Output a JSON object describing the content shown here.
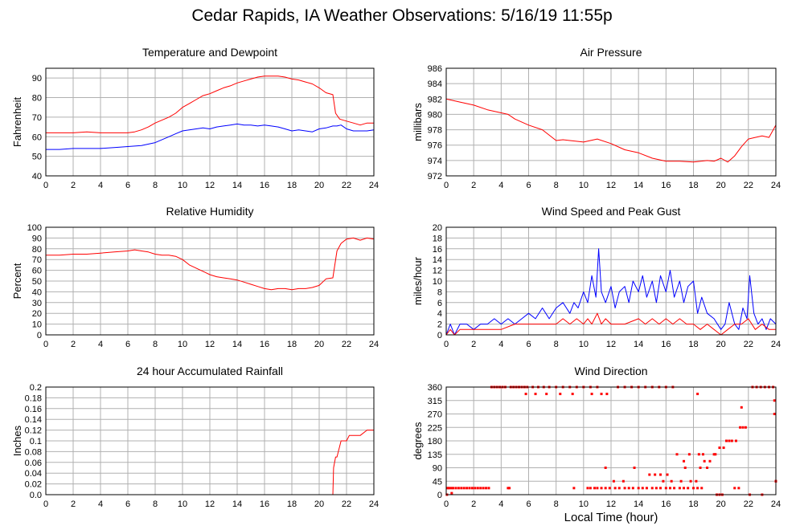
{
  "page": {
    "title": "Cedar Rapids, IA Weather Observations: 5/16/19 11:55p",
    "xlabel": "Local Time (hour)"
  },
  "colors": {
    "red": "#ff0000",
    "blue": "#0000ff",
    "grid": "#b0b0b0"
  },
  "chart_data": [
    {
      "id": "temp",
      "type": "line",
      "title": "Temperature and Dewpoint",
      "ylabel": "Fahrenheit",
      "xlim": [
        0,
        24
      ],
      "ylim": [
        40,
        95
      ],
      "xticks": [
        0,
        2,
        4,
        6,
        8,
        10,
        12,
        14,
        16,
        18,
        20,
        22,
        24
      ],
      "yticks": [
        40,
        50,
        60,
        70,
        80,
        90
      ],
      "grid": true,
      "series": [
        {
          "color": "#ff0000",
          "x": [
            0,
            1,
            2,
            3,
            4,
            5,
            6,
            6.5,
            7,
            7.5,
            8,
            8.5,
            9,
            9.5,
            10,
            10.5,
            11,
            11.5,
            12,
            12.5,
            13,
            13.5,
            14,
            14.5,
            15,
            15.5,
            16,
            16.5,
            17,
            17.5,
            18,
            18.5,
            19,
            19.5,
            20,
            20.5,
            21,
            21.2,
            21.5,
            22,
            22.5,
            23,
            23.5,
            24
          ],
          "y": [
            62,
            62,
            62,
            62.5,
            62,
            62,
            62,
            62.5,
            63.5,
            65,
            67,
            68.5,
            70,
            72,
            75,
            77,
            79,
            81,
            82,
            83.5,
            85,
            86,
            87.5,
            88.5,
            89.5,
            90.5,
            91,
            91,
            91,
            90.5,
            89.5,
            89,
            88,
            87,
            85,
            82.5,
            81.5,
            72,
            69,
            68,
            67,
            66,
            67,
            67
          ]
        },
        {
          "color": "#0000ff",
          "x": [
            0,
            1,
            2,
            3,
            4,
            5,
            6,
            7,
            8,
            8.5,
            9,
            9.5,
            10,
            10.5,
            11,
            11.5,
            12,
            12.5,
            13,
            13.5,
            14,
            14.5,
            15,
            15.5,
            16,
            16.5,
            17,
            17.5,
            18,
            18.5,
            19,
            19.5,
            20,
            20.5,
            21,
            21.3,
            21.6,
            22,
            22.5,
            23,
            23.5,
            24
          ],
          "y": [
            53.5,
            53.5,
            54,
            54,
            54,
            54.5,
            55,
            55.5,
            57,
            58.5,
            60,
            61.5,
            63,
            63.5,
            64,
            64.5,
            64,
            65,
            65.5,
            66,
            66.5,
            66,
            66,
            65.5,
            66,
            65.5,
            65,
            64,
            63,
            63.5,
            63,
            62.5,
            64,
            64.5,
            65.5,
            65.5,
            66,
            64,
            63,
            63,
            63,
            63.5
          ]
        }
      ]
    },
    {
      "id": "pressure",
      "type": "line",
      "title": "Air Pressure",
      "ylabel": "millibars",
      "xlim": [
        0,
        24
      ],
      "ylim": [
        972,
        986
      ],
      "xticks": [
        0,
        2,
        4,
        6,
        8,
        10,
        12,
        14,
        16,
        18,
        20,
        22,
        24
      ],
      "yticks": [
        972,
        974,
        976,
        978,
        980,
        982,
        984,
        986
      ],
      "grid": true,
      "series": [
        {
          "color": "#ff0000",
          "x": [
            0,
            1,
            2,
            3,
            4,
            4.5,
            5,
            6,
            7,
            8,
            8.5,
            9,
            10,
            11,
            12,
            13,
            14,
            15,
            16,
            17,
            18,
            19,
            19.5,
            20,
            20.5,
            21,
            21.5,
            22,
            22.5,
            23,
            23.5,
            24
          ],
          "y": [
            982,
            981.6,
            981.2,
            980.6,
            980.2,
            980,
            979.4,
            978.6,
            978,
            976.6,
            976.7,
            976.6,
            976.4,
            976.8,
            976.2,
            975.4,
            975,
            974.3,
            973.9,
            973.9,
            973.8,
            974,
            973.9,
            974.3,
            973.8,
            974.6,
            975.8,
            976.8,
            977,
            977.2,
            977,
            978.6
          ]
        }
      ]
    },
    {
      "id": "humidity",
      "type": "line",
      "title": "Relative Humidity",
      "ylabel": "Percent",
      "xlim": [
        0,
        24
      ],
      "ylim": [
        0,
        100
      ],
      "xticks": [
        0,
        2,
        4,
        6,
        8,
        10,
        12,
        14,
        16,
        18,
        20,
        22,
        24
      ],
      "yticks": [
        0,
        10,
        20,
        30,
        40,
        50,
        60,
        70,
        80,
        90,
        100
      ],
      "grid": true,
      "series": [
        {
          "color": "#ff0000",
          "x": [
            0,
            1,
            2,
            3,
            4,
            5,
            6,
            6.5,
            7,
            7.5,
            8,
            8.5,
            9,
            9.5,
            10,
            10.5,
            11,
            11.5,
            12,
            12.5,
            13,
            13.5,
            14,
            14.5,
            15,
            15.5,
            16,
            16.5,
            17,
            17.5,
            18,
            18.5,
            19,
            19.5,
            20,
            20.5,
            21,
            21.3,
            21.6,
            22,
            22.5,
            23,
            23.5,
            24
          ],
          "y": [
            74,
            74,
            75,
            75,
            76,
            77,
            78,
            79,
            78,
            77,
            75,
            74,
            74,
            73,
            70,
            65,
            62,
            59,
            56,
            54,
            53,
            52,
            51,
            49,
            47,
            45,
            43,
            42,
            43,
            43,
            42,
            43,
            43,
            44,
            46,
            52,
            53,
            78,
            85,
            89,
            90,
            88,
            90,
            89
          ]
        }
      ]
    },
    {
      "id": "wind",
      "type": "line",
      "title": "Wind Speed and Peak Gust",
      "ylabel": "miles/hour",
      "xlim": [
        0,
        24
      ],
      "ylim": [
        0,
        20
      ],
      "xticks": [
        0,
        2,
        4,
        6,
        8,
        10,
        12,
        14,
        16,
        18,
        20,
        22,
        24
      ],
      "yticks": [
        0,
        2,
        4,
        6,
        8,
        10,
        12,
        14,
        16,
        18,
        20
      ],
      "grid": true,
      "series": [
        {
          "color": "#0000ff",
          "x": [
            0,
            0.3,
            0.6,
            1,
            1.5,
            2,
            2.5,
            3,
            3.5,
            4,
            4.5,
            5,
            5.5,
            6,
            6.5,
            7,
            7.5,
            8,
            8.5,
            9,
            9.3,
            9.6,
            10,
            10.3,
            10.6,
            10.9,
            11.1,
            11.3,
            11.6,
            12,
            12.3,
            12.6,
            13,
            13.3,
            13.6,
            14,
            14.3,
            14.6,
            15,
            15.3,
            15.6,
            16,
            16.3,
            16.6,
            17,
            17.3,
            17.6,
            18,
            18.3,
            18.6,
            19,
            19.5,
            20,
            20.3,
            20.6,
            21,
            21.3,
            21.6,
            21.9,
            22.1,
            22.4,
            22.7,
            23,
            23.3,
            23.6,
            24
          ],
          "y": [
            0,
            2,
            0,
            2,
            2,
            1,
            2,
            2,
            3,
            2,
            3,
            2,
            3,
            4,
            3,
            5,
            3,
            5,
            6,
            4,
            6,
            5,
            8,
            6,
            11,
            7,
            16,
            8,
            6,
            9,
            5,
            8,
            9,
            6,
            10,
            8,
            11,
            7,
            10,
            6,
            11,
            8,
            12,
            7,
            10,
            6,
            9,
            10,
            4,
            7,
            4,
            3,
            1,
            2,
            6,
            2,
            1,
            5,
            3,
            11,
            4,
            2,
            3,
            1,
            3,
            2
          ]
        },
        {
          "color": "#ff0000",
          "x": [
            0,
            0.3,
            0.6,
            1,
            2,
            3,
            4,
            5,
            6,
            7,
            8,
            8.5,
            9,
            9.5,
            10,
            10.3,
            10.6,
            11,
            11.3,
            11.6,
            12,
            13,
            14,
            14.5,
            15,
            15.5,
            16,
            16.5,
            17,
            17.5,
            18,
            18.5,
            19,
            19.5,
            20,
            20.5,
            21,
            21.5,
            22,
            22.5,
            23,
            23.5,
            24
          ],
          "y": [
            0,
            1,
            0,
            1,
            1,
            1,
            1,
            2,
            2,
            2,
            2,
            3,
            2,
            3,
            2,
            3,
            2,
            4,
            2,
            3,
            2,
            2,
            3,
            2,
            3,
            2,
            3,
            2,
            3,
            2,
            2,
            1,
            2,
            1,
            0,
            1,
            2,
            2,
            3,
            1,
            2,
            1,
            1
          ]
        }
      ]
    },
    {
      "id": "rain",
      "type": "line",
      "title": "24 hour Accumulated Rainfall",
      "ylabel": "Inches",
      "xlim": [
        0,
        24
      ],
      "ylim": [
        0,
        0.2
      ],
      "xticks": [
        0,
        2,
        4,
        6,
        8,
        10,
        12,
        14,
        16,
        18,
        20,
        22,
        24
      ],
      "yticks": [
        0,
        0.02,
        0.04,
        0.06,
        0.08,
        0.1,
        0.12,
        0.14,
        0.16,
        0.18,
        0.2
      ],
      "ytick_labels": [
        "0.0",
        "0.02",
        "0.04",
        "0.06",
        "0.08",
        "0.1",
        "0.12",
        "0.14",
        "0.16",
        "0.18",
        "0.2"
      ],
      "grid": true,
      "series": [
        {
          "color": "#ff0000",
          "x": [
            0,
            21,
            21.05,
            21.2,
            21.3,
            21.5,
            21.6,
            22,
            22.2,
            23,
            23.5,
            24
          ],
          "y": [
            0,
            0,
            0.05,
            0.07,
            0.07,
            0.09,
            0.1,
            0.1,
            0.11,
            0.11,
            0.12,
            0.12
          ]
        }
      ]
    },
    {
      "id": "direction",
      "type": "scatter",
      "title": "Wind Direction",
      "ylabel": "degrees",
      "xlim": [
        0,
        24
      ],
      "ylim": [
        0,
        360
      ],
      "xticks": [
        0,
        2,
        4,
        6,
        8,
        10,
        12,
        14,
        16,
        18,
        20,
        22,
        24
      ],
      "yticks": [
        0,
        45,
        90,
        135,
        180,
        225,
        270,
        315,
        360
      ],
      "grid": true,
      "series": [
        {
          "color": "#ff0000",
          "x": [
            0.1,
            0.2,
            0.35,
            0.5,
            0.7,
            0.9,
            1.1,
            1.3,
            1.5,
            1.7,
            1.9,
            2.1,
            2.3,
            2.5,
            2.7,
            2.9,
            3.1,
            0.05,
            0.4,
            4.5,
            4.6,
            3.3,
            3.5,
            3.7,
            3.9,
            4.1,
            4.3,
            4.7,
            4.9,
            5.1,
            5.3,
            5.5,
            5.7,
            5.9,
            6.3,
            6.7,
            7.1,
            7.5,
            8.0,
            8.5,
            9.0,
            9.5,
            10.0,
            10.5,
            11.0,
            12.5,
            13.0,
            13.5,
            14.0,
            14.5,
            15.0,
            15.5,
            16.0,
            16.5,
            22.3,
            22.6,
            22.9,
            23.2,
            23.5,
            23.8,
            5.8,
            6.5,
            7.3,
            8.3,
            9.2,
            10.6,
            11.3,
            11.7,
            18.3,
            23.9,
            10.3,
            10.5,
            10.8,
            11.0,
            11.3,
            11.6,
            11.9,
            12.3,
            12.6,
            13.0,
            13.3,
            13.6,
            14.0,
            14.3,
            14.6,
            15.0,
            15.3,
            15.6,
            16.0,
            16.3,
            16.6,
            17.0,
            17.3,
            17.6,
            18.0,
            18.3,
            18.6,
            9.3,
            12.2,
            12.9,
            15.8,
            16.4,
            17.1,
            17.8,
            18.2,
            14.8,
            15.2,
            15.6,
            16.1,
            13.7,
            17.4,
            18.5,
            19.0,
            11.6,
            17.3,
            18.8,
            19.2,
            16.8,
            17.7,
            18.4,
            18.7,
            19.5,
            19.6,
            19.9,
            20.2,
            20.4,
            20.6,
            20.8,
            21.1,
            21.4,
            21.6,
            21.8,
            21.5,
            23.9,
            24.0,
            24.0,
            19.7,
            19.9,
            20.1,
            21.0,
            21.3,
            22.1,
            23.0
          ],
          "y": [
            22,
            22,
            22,
            22,
            22,
            22,
            22,
            22,
            22,
            22,
            22,
            22,
            22,
            22,
            22,
            22,
            22,
            0,
            5,
            22,
            22,
            360,
            360,
            360,
            360,
            360,
            360,
            360,
            360,
            360,
            360,
            360,
            360,
            360,
            360,
            360,
            360,
            360,
            360,
            360,
            360,
            360,
            360,
            360,
            360,
            360,
            360,
            360,
            360,
            360,
            360,
            360,
            360,
            360,
            360,
            360,
            360,
            360,
            360,
            360,
            337,
            337,
            337,
            337,
            337,
            337,
            337,
            337,
            337,
            315,
            22,
            22,
            22,
            22,
            22,
            22,
            22,
            22,
            22,
            22,
            22,
            22,
            22,
            22,
            22,
            22,
            22,
            22,
            22,
            22,
            22,
            22,
            22,
            22,
            22,
            22,
            22,
            22,
            45,
            45,
            45,
            45,
            45,
            45,
            45,
            67,
            67,
            67,
            67,
            90,
            90,
            90,
            90,
            90,
            112,
            112,
            112,
            135,
            135,
            135,
            135,
            135,
            135,
            157,
            157,
            180,
            180,
            180,
            180,
            225,
            225,
            225,
            292,
            270,
            45,
            45,
            0,
            0,
            0,
            22,
            22,
            0,
            0
          ]
        }
      ]
    }
  ]
}
